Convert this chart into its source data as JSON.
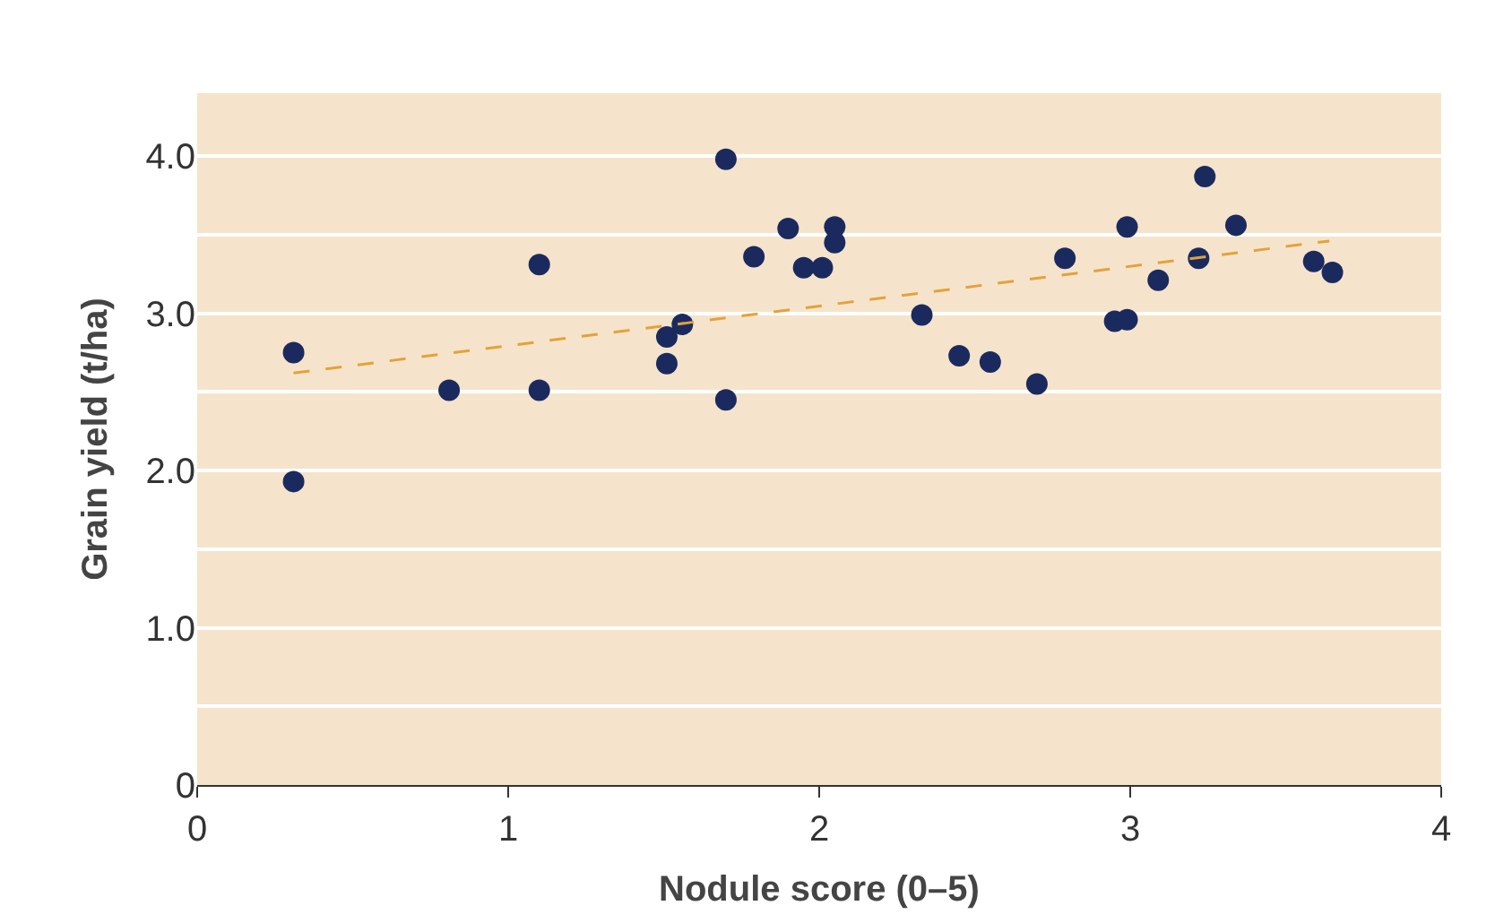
{
  "chart_data": {
    "type": "scatter",
    "xlabel": "Nodule score (0–5)",
    "ylabel": "Grain yield (t/ha)",
    "xlim": [
      0,
      4
    ],
    "xticks": [
      0,
      1,
      2,
      3,
      4
    ],
    "ylim": [
      0,
      4.4
    ],
    "yticks": [
      0,
      {
        "value": 0.5,
        "label": null
      },
      {
        "value": 1,
        "label": "1.0"
      },
      {
        "value": 1.5,
        "label": null
      },
      {
        "value": 2,
        "label": "2.0"
      },
      {
        "value": 2.5,
        "label": null
      },
      {
        "value": 3,
        "label": "3.0"
      },
      {
        "value": 3.5,
        "label": null
      },
      {
        "value": 4,
        "label": "4.0"
      }
    ],
    "grid": "y",
    "series": [
      {
        "marker": "circle",
        "color": "#1b2a5e",
        "x": [
          0.31,
          0.31,
          0.81,
          1.1,
          1.1,
          1.51,
          1.51,
          1.56,
          1.7,
          1.7,
          1.79,
          1.9,
          1.95,
          2.01,
          2.05,
          2.05,
          2.33,
          2.45,
          2.55,
          2.7,
          2.79,
          2.95,
          2.99,
          2.99,
          3.09,
          3.22,
          3.24,
          3.34,
          3.59,
          3.65
        ],
        "values": [
          2.75,
          1.93,
          2.51,
          3.31,
          2.51,
          2.85,
          2.68,
          2.93,
          3.98,
          2.45,
          3.36,
          3.54,
          3.29,
          3.29,
          3.55,
          3.45,
          2.99,
          2.73,
          2.69,
          2.55,
          3.35,
          2.95,
          2.96,
          3.55,
          3.21,
          3.35,
          3.87,
          3.56,
          3.33,
          3.26
        ]
      },
      {
        "type": "line",
        "marker": "none",
        "color": "#e3a23c",
        "line_style": "dashed",
        "x": [
          0.31,
          3.64
        ],
        "values": [
          2.62,
          3.46
        ]
      }
    ]
  }
}
